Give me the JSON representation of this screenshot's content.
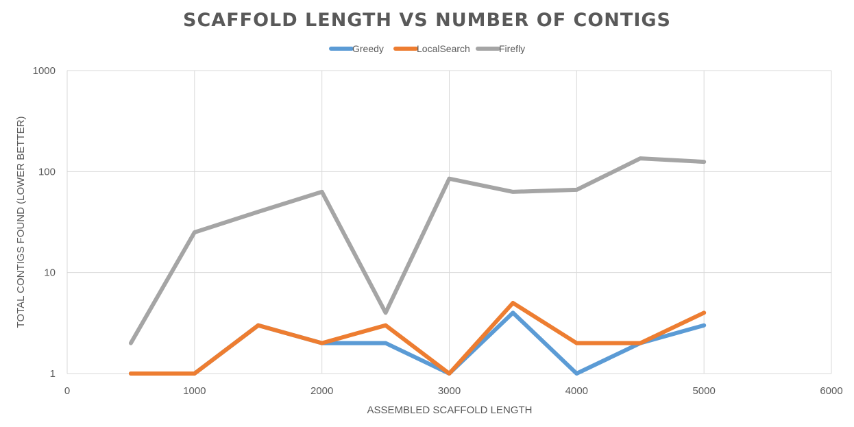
{
  "chart_data": {
    "type": "line",
    "title": "SCAFFOLD LENGTH VS NUMBER OF CONTIGS",
    "xlabel": "ASSEMBLED SCAFFOLD LENGTH",
    "ylabel": "TOTAL CONTIGS FOUND (LOWER BETTER)",
    "x": [
      500,
      1000,
      1500,
      2000,
      2500,
      3000,
      3500,
      4000,
      4500,
      5000
    ],
    "xlim": [
      0,
      6000
    ],
    "ylim": [
      1,
      1000
    ],
    "y_scale": "log",
    "x_ticks": [
      0,
      1000,
      2000,
      3000,
      4000,
      5000,
      6000
    ],
    "x_tick_labels": [
      "0",
      "1000",
      "2000",
      "3000",
      "4000",
      "5000",
      "6000"
    ],
    "y_ticks": [
      1,
      10,
      100,
      1000
    ],
    "y_tick_labels": [
      "1",
      "10",
      "100",
      "1000"
    ],
    "grid": true,
    "legend_position": "top",
    "series": [
      {
        "name": "Greedy",
        "color": "#5B9BD5",
        "values": [
          1,
          1,
          3,
          2,
          2,
          1,
          4,
          1,
          2,
          3
        ]
      },
      {
        "name": "LocalSearch",
        "color": "#ED7D31",
        "values": [
          1,
          1,
          3,
          2,
          3,
          1,
          5,
          2,
          2,
          4
        ]
      },
      {
        "name": "Firefly",
        "color": "#A5A5A5",
        "values": [
          2,
          25,
          40,
          63,
          4,
          85,
          63,
          66,
          135,
          125
        ]
      }
    ]
  }
}
